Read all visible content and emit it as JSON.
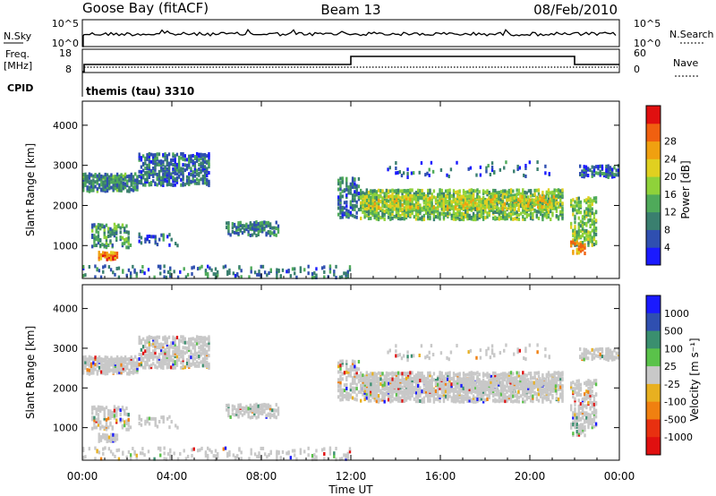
{
  "header": {
    "station": "Goose Bay (fitACF)",
    "beam": "Beam 13",
    "date": "08/Feb/2010"
  },
  "noise_panel": {
    "left_label": "N.Sky",
    "left_ticks": [
      "10^5",
      "10^0"
    ],
    "right_label": "N.Search",
    "right_ticks": [
      "10^5",
      "10^0"
    ]
  },
  "freq_panel": {
    "left_label_1": "Freq.",
    "left_label_2": "[MHz]",
    "left_ticks": [
      "18",
      "8"
    ],
    "right_label": "Nave",
    "right_ticks": [
      "60",
      "0"
    ]
  },
  "cpid": {
    "label": "CPID",
    "value": "themis (tau) 3310"
  },
  "chart_data": [
    {
      "type": "heatmap",
      "parameter": "power",
      "ylabel": "Slant Range [km]",
      "yticks": [
        1000,
        2000,
        3000,
        4000
      ],
      "ylim": [
        180,
        4600
      ],
      "xlim_hours": [
        0,
        24
      ],
      "colorbar_label": "Power [dB]",
      "colorbar_ticks": [
        "4",
        "8",
        "12",
        "16",
        "20",
        "24",
        "28"
      ],
      "colorbar_colors": [
        "#1a1aff",
        "#2f4fb0",
        "#3a7f6f",
        "#4faa5a",
        "#8fd23a",
        "#e0d020",
        "#f0a010",
        "#f06010",
        "#e01010"
      ],
      "echo_regions_approx": [
        {
          "hours": [
            0.0,
            5.7
          ],
          "range_km": [
            2300,
            3300
          ]
        },
        {
          "hours": [
            0.3,
            2.3
          ],
          "range_km": [
            900,
            1600
          ]
        },
        {
          "hours": [
            6.3,
            8.8
          ],
          "range_km": [
            1200,
            1600
          ]
        },
        {
          "hours": [
            11.3,
            21.5
          ],
          "range_km": [
            1500,
            2500
          ]
        },
        {
          "hours": [
            21.8,
            24.0
          ],
          "range_km": [
            800,
            3000
          ]
        }
      ]
    },
    {
      "type": "heatmap",
      "parameter": "velocity",
      "ylabel": "Slant Range [km]",
      "yticks": [
        1000,
        2000,
        3000,
        4000
      ],
      "ylim": [
        180,
        4600
      ],
      "xlim_hours": [
        0,
        24
      ],
      "colorbar_label": "Velocity [m s⁻¹]",
      "colorbar_ticks": [
        "1000",
        "500",
        "100",
        "25",
        "-25",
        "-100",
        "-500",
        "-1000"
      ],
      "colorbar_colors": [
        "#1a1aff",
        "#2f4fb0",
        "#3a8f6f",
        "#5ac24a",
        "#c8c8c8",
        "#e8b020",
        "#f08010",
        "#e83010",
        "#e01010"
      ]
    }
  ],
  "x_axis": {
    "tick_labels": [
      "00:00",
      "04:00",
      "08:00",
      "12:00",
      "16:00",
      "20:00",
      "00:00"
    ],
    "label": "Time UT"
  }
}
